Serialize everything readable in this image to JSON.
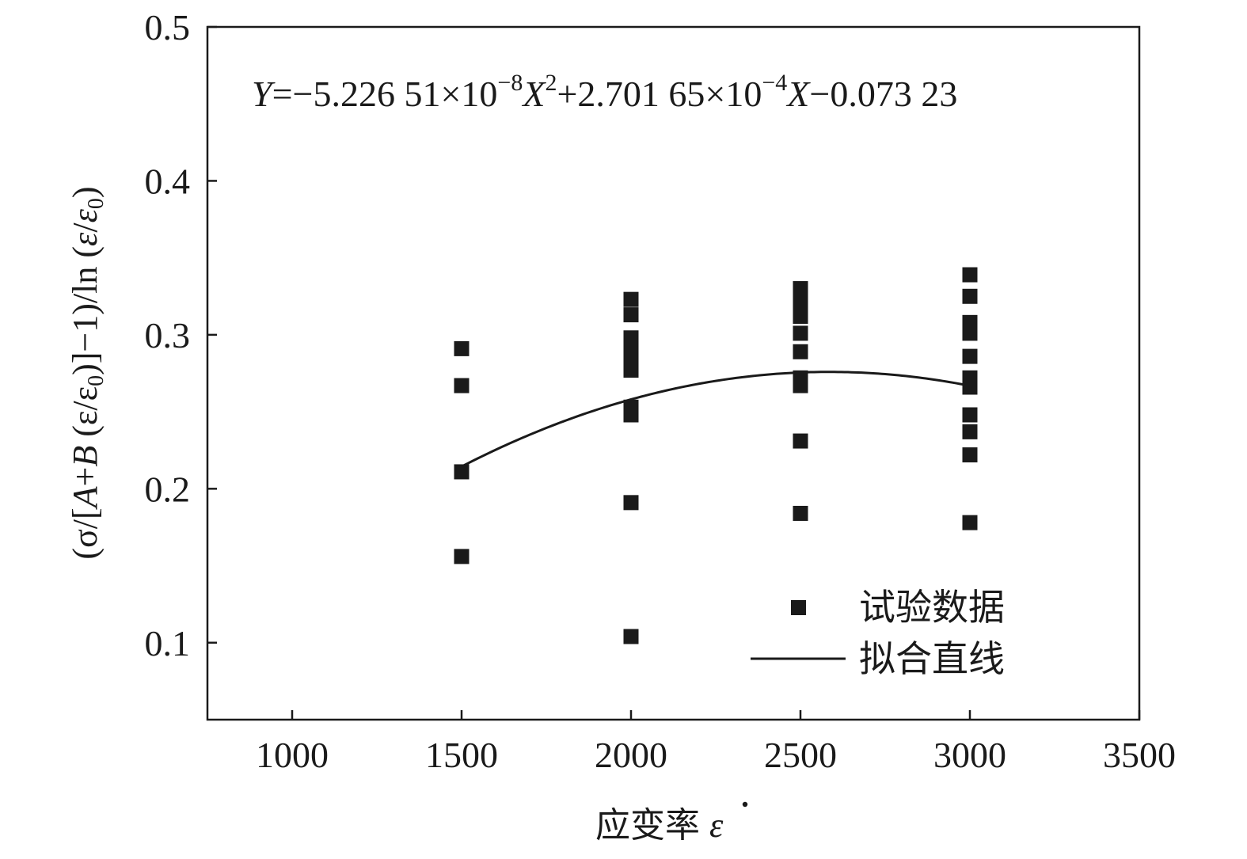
{
  "chart_data": {
    "type": "scatter",
    "xlabel": "应变率 ε̇",
    "xlabel_prefix": "应变率",
    "xlabel_symbol": "ε",
    "ylabel_parts": {
      "p1": "(σ/[",
      "A": "A",
      "p2": "+",
      "B": "B",
      "p3": " (ε/ε",
      "sub0": "0",
      "p4": ")]−1)/ln (",
      "edot": "ε",
      "p5": "/",
      "edot0": "ε",
      "sub0b": "0",
      "p6": ")"
    },
    "xlim": [
      750,
      3500
    ],
    "ylim": [
      0.05,
      0.5
    ],
    "xticks": [
      1000,
      1500,
      2000,
      2500,
      3000,
      3500
    ],
    "yticks": [
      0.1,
      0.2,
      0.3,
      0.4,
      0.5
    ],
    "xtick_labels": [
      "1000",
      "1500",
      "2000",
      "2500",
      "3000",
      "3500"
    ],
    "ytick_labels": [
      "0.1",
      "0.2",
      "0.3",
      "0.4",
      "0.5"
    ],
    "grid": false,
    "legend_position": "bottom-right",
    "equation": {
      "Y": "Y",
      "t1": "=−5.226 51×10",
      "e1": "−8",
      "X1": "X",
      "e2": "2",
      "t2": "+2.701 65×10",
      "e3": "−4",
      "X2": "X",
      "t3": "−0.073 23"
    },
    "series": [
      {
        "name": "试验数据",
        "kind": "scatter",
        "color": "#1a1a1a",
        "points": [
          [
            1500,
            0.291
          ],
          [
            1500,
            0.267
          ],
          [
            1500,
            0.211
          ],
          [
            1500,
            0.156
          ],
          [
            2000,
            0.323
          ],
          [
            2000,
            0.313
          ],
          [
            2000,
            0.298
          ],
          [
            2000,
            0.29
          ],
          [
            2000,
            0.286
          ],
          [
            2000,
            0.277
          ],
          [
            2000,
            0.253
          ],
          [
            2000,
            0.248
          ],
          [
            2000,
            0.191
          ],
          [
            2000,
            0.104
          ],
          [
            2500,
            0.33
          ],
          [
            2500,
            0.325
          ],
          [
            2500,
            0.318
          ],
          [
            2500,
            0.312
          ],
          [
            2500,
            0.301
          ],
          [
            2500,
            0.289
          ],
          [
            2500,
            0.272
          ],
          [
            2500,
            0.267
          ],
          [
            2500,
            0.231
          ],
          [
            2500,
            0.184
          ],
          [
            3000,
            0.339
          ],
          [
            3000,
            0.325
          ],
          [
            3000,
            0.308
          ],
          [
            3000,
            0.301
          ],
          [
            3000,
            0.286
          ],
          [
            3000,
            0.272
          ],
          [
            3000,
            0.266
          ],
          [
            3000,
            0.248
          ],
          [
            3000,
            0.237
          ],
          [
            3000,
            0.222
          ],
          [
            3000,
            0.178
          ]
        ]
      },
      {
        "name": "拟合直线",
        "kind": "line",
        "color": "#1a1a1a",
        "coefficients": {
          "a": -5.22651e-08,
          "b": 0.000270165,
          "c": -0.07323
        },
        "x_range": [
          1500,
          3000
        ]
      }
    ]
  }
}
